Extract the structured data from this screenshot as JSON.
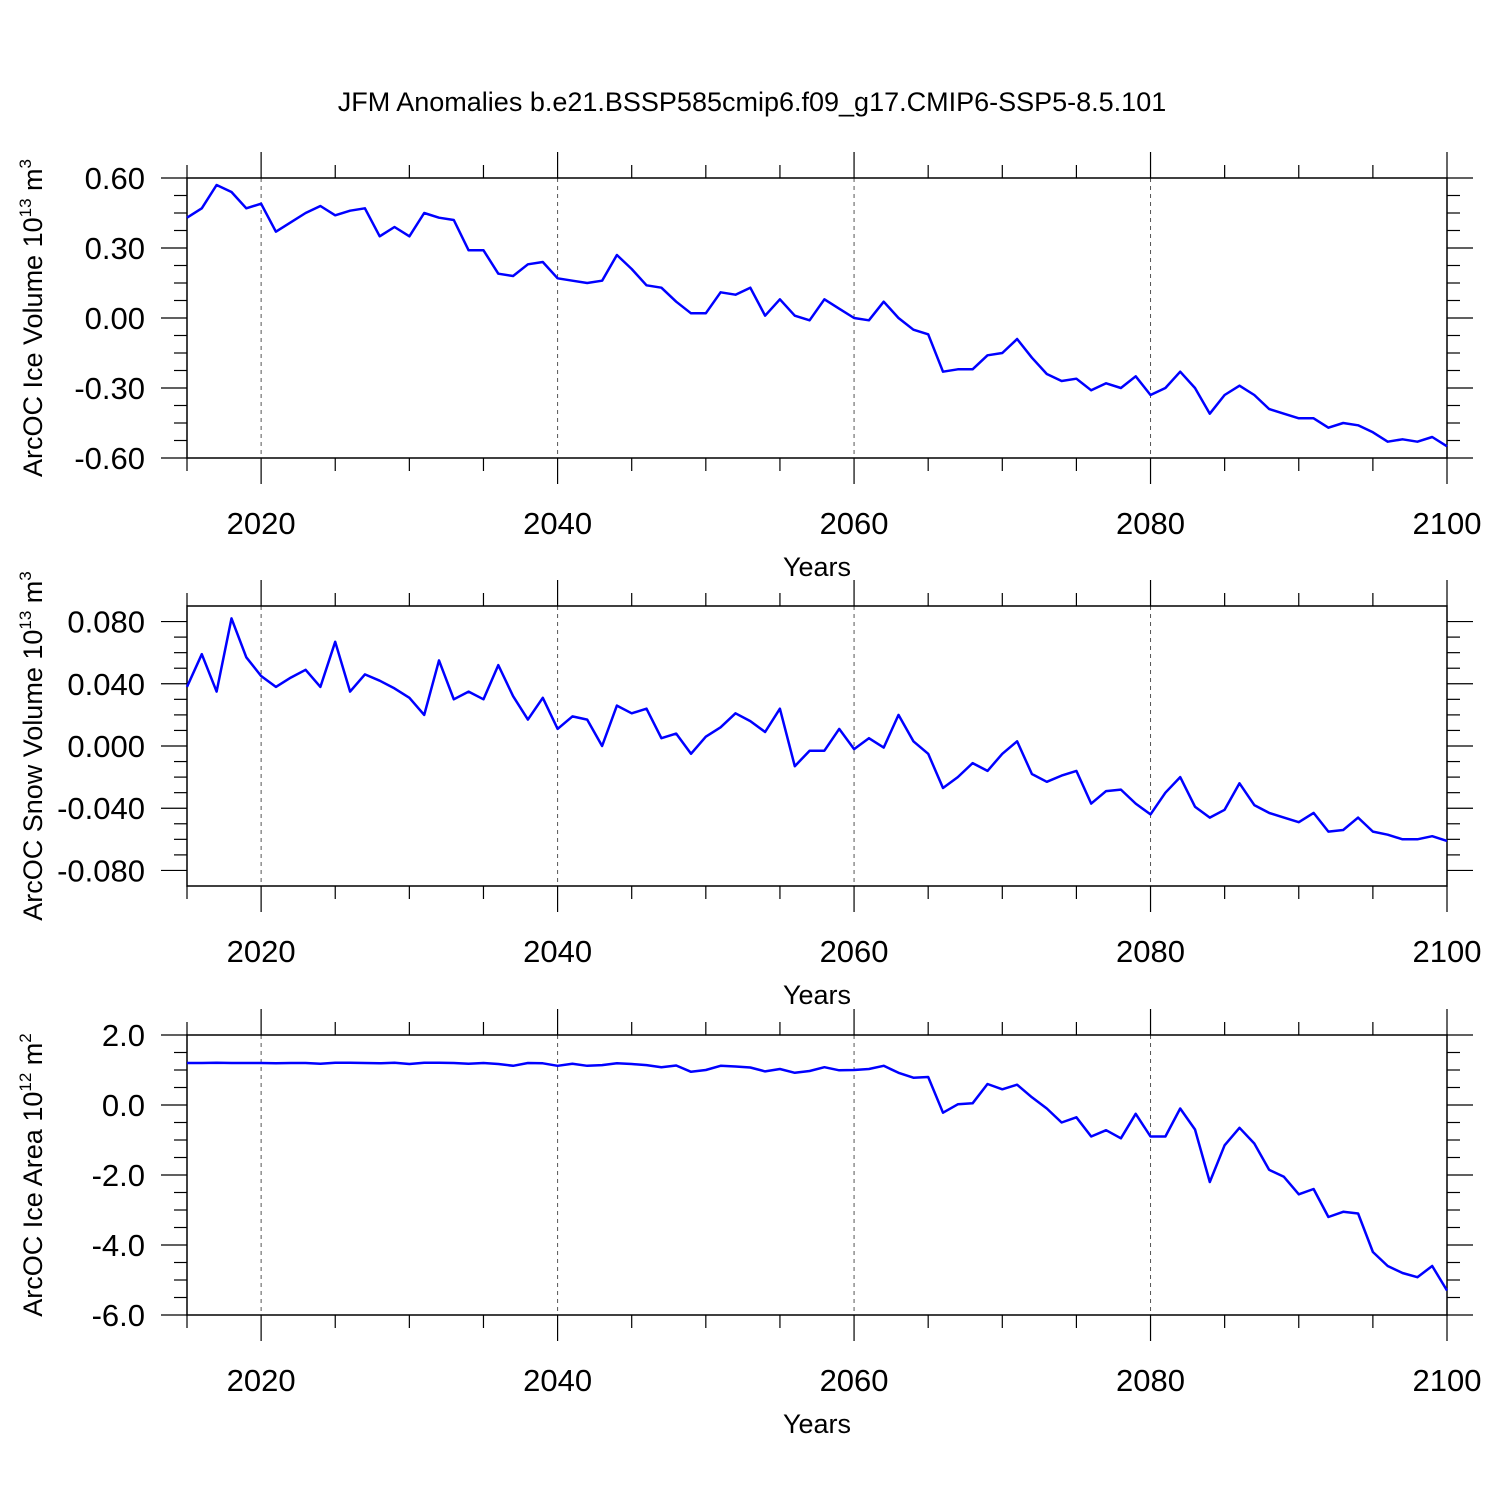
{
  "title": "JFM Anomalies b.e21.BSSP585cmip6.f09_g17.CMIP6-SSP5-8.5.101",
  "line_color": "#0000ff",
  "chart_data": [
    {
      "type": "line",
      "ylabel_main": "ArcOC Ice Volume 10",
      "ylabel_exp": "13",
      "ylabel_unit": " m",
      "ylabel_unit_exp": "3",
      "xlabel": "Years",
      "xlim": [
        2015,
        2100
      ],
      "ylim": [
        -0.6,
        0.6
      ],
      "yticks": [
        0.6,
        0.3,
        0.0,
        -0.3,
        -0.6
      ],
      "yticklabels": [
        "0.60",
        "0.30",
        "0.00",
        "-0.30",
        "-0.60"
      ],
      "xticks": [
        2020,
        2040,
        2060,
        2080,
        2100
      ],
      "xticklabels": [
        "2020",
        "2040",
        "2060",
        "2080",
        "2100"
      ],
      "x": [
        2015,
        2016,
        2017,
        2018,
        2019,
        2020,
        2021,
        2022,
        2023,
        2024,
        2025,
        2026,
        2027,
        2028,
        2029,
        2030,
        2031,
        2032,
        2033,
        2034,
        2035,
        2036,
        2037,
        2038,
        2039,
        2040,
        2041,
        2042,
        2043,
        2044,
        2045,
        2046,
        2047,
        2048,
        2049,
        2050,
        2051,
        2052,
        2053,
        2054,
        2055,
        2056,
        2057,
        2058,
        2059,
        2060,
        2061,
        2062,
        2063,
        2064,
        2065,
        2066,
        2067,
        2068,
        2069,
        2070,
        2071,
        2072,
        2073,
        2074,
        2075,
        2076,
        2077,
        2078,
        2079,
        2080,
        2081,
        2082,
        2083,
        2084,
        2085,
        2086,
        2087,
        2088,
        2089,
        2090,
        2091,
        2092,
        2093,
        2094,
        2095,
        2096,
        2097,
        2098,
        2099,
        2100
      ],
      "values": [
        0.43,
        0.47,
        0.57,
        0.54,
        0.47,
        0.49,
        0.37,
        0.41,
        0.45,
        0.48,
        0.44,
        0.46,
        0.47,
        0.35,
        0.39,
        0.35,
        0.45,
        0.43,
        0.42,
        0.29,
        0.29,
        0.19,
        0.18,
        0.23,
        0.24,
        0.17,
        0.16,
        0.15,
        0.16,
        0.27,
        0.21,
        0.14,
        0.13,
        0.07,
        0.02,
        0.02,
        0.11,
        0.1,
        0.13,
        0.01,
        0.08,
        0.01,
        -0.01,
        0.08,
        0.04,
        0.0,
        -0.01,
        0.07,
        0.0,
        -0.05,
        -0.07,
        -0.23,
        -0.22,
        -0.22,
        -0.16,
        -0.15,
        -0.09,
        -0.17,
        -0.24,
        -0.27,
        -0.26,
        -0.31,
        -0.28,
        -0.3,
        -0.25,
        -0.33,
        -0.3,
        -0.23,
        -0.3,
        -0.41,
        -0.33,
        -0.29,
        -0.33,
        -0.39,
        -0.41,
        -0.43,
        -0.43,
        -0.47,
        -0.45,
        -0.46,
        -0.49,
        -0.53,
        -0.52,
        -0.53,
        -0.51,
        -0.55
      ]
    },
    {
      "type": "line",
      "ylabel_main": "ArcOC Snow Volume 10",
      "ylabel_exp": "13",
      "ylabel_unit": " m",
      "ylabel_unit_exp": "3",
      "xlabel": "Years",
      "xlim": [
        2015,
        2100
      ],
      "ylim": [
        -0.09,
        0.09
      ],
      "yticks": [
        0.08,
        0.04,
        0.0,
        -0.04,
        -0.08
      ],
      "yticklabels": [
        "0.080",
        "0.040",
        "0.000",
        "-0.040",
        "-0.080"
      ],
      "xticks": [
        2020,
        2040,
        2060,
        2080,
        2100
      ],
      "xticklabels": [
        "2020",
        "2040",
        "2060",
        "2080",
        "2100"
      ],
      "x": [
        2015,
        2016,
        2017,
        2018,
        2019,
        2020,
        2021,
        2022,
        2023,
        2024,
        2025,
        2026,
        2027,
        2028,
        2029,
        2030,
        2031,
        2032,
        2033,
        2034,
        2035,
        2036,
        2037,
        2038,
        2039,
        2040,
        2041,
        2042,
        2043,
        2044,
        2045,
        2046,
        2047,
        2048,
        2049,
        2050,
        2051,
        2052,
        2053,
        2054,
        2055,
        2056,
        2057,
        2058,
        2059,
        2060,
        2061,
        2062,
        2063,
        2064,
        2065,
        2066,
        2067,
        2068,
        2069,
        2070,
        2071,
        2072,
        2073,
        2074,
        2075,
        2076,
        2077,
        2078,
        2079,
        2080,
        2081,
        2082,
        2083,
        2084,
        2085,
        2086,
        2087,
        2088,
        2089,
        2090,
        2091,
        2092,
        2093,
        2094,
        2095,
        2096,
        2097,
        2098,
        2099,
        2100
      ],
      "values": [
        0.038,
        0.059,
        0.035,
        0.082,
        0.057,
        0.045,
        0.038,
        0.044,
        0.049,
        0.038,
        0.067,
        0.035,
        0.046,
        0.042,
        0.037,
        0.031,
        0.02,
        0.055,
        0.03,
        0.035,
        0.03,
        0.052,
        0.032,
        0.017,
        0.031,
        0.011,
        0.019,
        0.017,
        0.0,
        0.026,
        0.021,
        0.024,
        0.005,
        0.008,
        -0.005,
        0.006,
        0.012,
        0.021,
        0.016,
        0.009,
        0.024,
        -0.013,
        -0.003,
        -0.003,
        0.011,
        -0.002,
        0.005,
        -0.001,
        0.02,
        0.003,
        -0.005,
        -0.027,
        -0.02,
        -0.011,
        -0.016,
        -0.005,
        0.003,
        -0.018,
        -0.023,
        -0.019,
        -0.016,
        -0.037,
        -0.029,
        -0.028,
        -0.037,
        -0.044,
        -0.03,
        -0.02,
        -0.039,
        -0.046,
        -0.041,
        -0.024,
        -0.038,
        -0.043,
        -0.046,
        -0.049,
        -0.043,
        -0.055,
        -0.054,
        -0.046,
        -0.055,
        -0.057,
        -0.06,
        -0.06,
        -0.058,
        -0.061
      ]
    },
    {
      "type": "line",
      "ylabel_main": "ArcOC Ice Area 10",
      "ylabel_exp": "12",
      "ylabel_unit": " m",
      "ylabel_unit_exp": "2",
      "xlabel": "Years",
      "xlim": [
        2015,
        2100
      ],
      "ylim": [
        -6.0,
        2.0
      ],
      "yticks": [
        2.0,
        0.0,
        -2.0,
        -4.0,
        -6.0
      ],
      "yticklabels": [
        "2.0",
        "0.0",
        "-2.0",
        "-4.0",
        "-6.0"
      ],
      "xticks": [
        2020,
        2040,
        2060,
        2080,
        2100
      ],
      "xticklabels": [
        "2020",
        "2040",
        "2060",
        "2080",
        "2100"
      ],
      "x": [
        2015,
        2016,
        2017,
        2018,
        2019,
        2020,
        2021,
        2022,
        2023,
        2024,
        2025,
        2026,
        2027,
        2028,
        2029,
        2030,
        2031,
        2032,
        2033,
        2034,
        2035,
        2036,
        2037,
        2038,
        2039,
        2040,
        2041,
        2042,
        2043,
        2044,
        2045,
        2046,
        2047,
        2048,
        2049,
        2050,
        2051,
        2052,
        2053,
        2054,
        2055,
        2056,
        2057,
        2058,
        2059,
        2060,
        2061,
        2062,
        2063,
        2064,
        2065,
        2066,
        2067,
        2068,
        2069,
        2070,
        2071,
        2072,
        2073,
        2074,
        2075,
        2076,
        2077,
        2078,
        2079,
        2080,
        2081,
        2082,
        2083,
        2084,
        2085,
        2086,
        2087,
        2088,
        2089,
        2090,
        2091,
        2092,
        2093,
        2094,
        2095,
        2096,
        2097,
        2098,
        2099,
        2100
      ],
      "values": [
        1.2,
        1.2,
        1.21,
        1.2,
        1.2,
        1.2,
        1.19,
        1.2,
        1.2,
        1.18,
        1.21,
        1.21,
        1.2,
        1.19,
        1.21,
        1.17,
        1.21,
        1.21,
        1.2,
        1.18,
        1.2,
        1.17,
        1.12,
        1.2,
        1.19,
        1.12,
        1.18,
        1.12,
        1.14,
        1.19,
        1.17,
        1.14,
        1.08,
        1.13,
        0.95,
        1.0,
        1.12,
        1.1,
        1.07,
        0.96,
        1.03,
        0.92,
        0.97,
        1.08,
        0.99,
        1.0,
        1.03,
        1.12,
        0.92,
        0.78,
        0.8,
        -0.22,
        0.02,
        0.05,
        0.6,
        0.45,
        0.58,
        0.22,
        -0.1,
        -0.5,
        -0.35,
        -0.9,
        -0.72,
        -0.95,
        -0.25,
        -0.9,
        -0.9,
        -0.1,
        -0.7,
        -2.2,
        -1.15,
        -0.65,
        -1.1,
        -1.85,
        -2.05,
        -2.55,
        -2.4,
        -3.2,
        -3.05,
        -3.1,
        -4.2,
        -4.6,
        -4.8,
        -4.92,
        -4.6,
        -5.3
      ]
    }
  ]
}
